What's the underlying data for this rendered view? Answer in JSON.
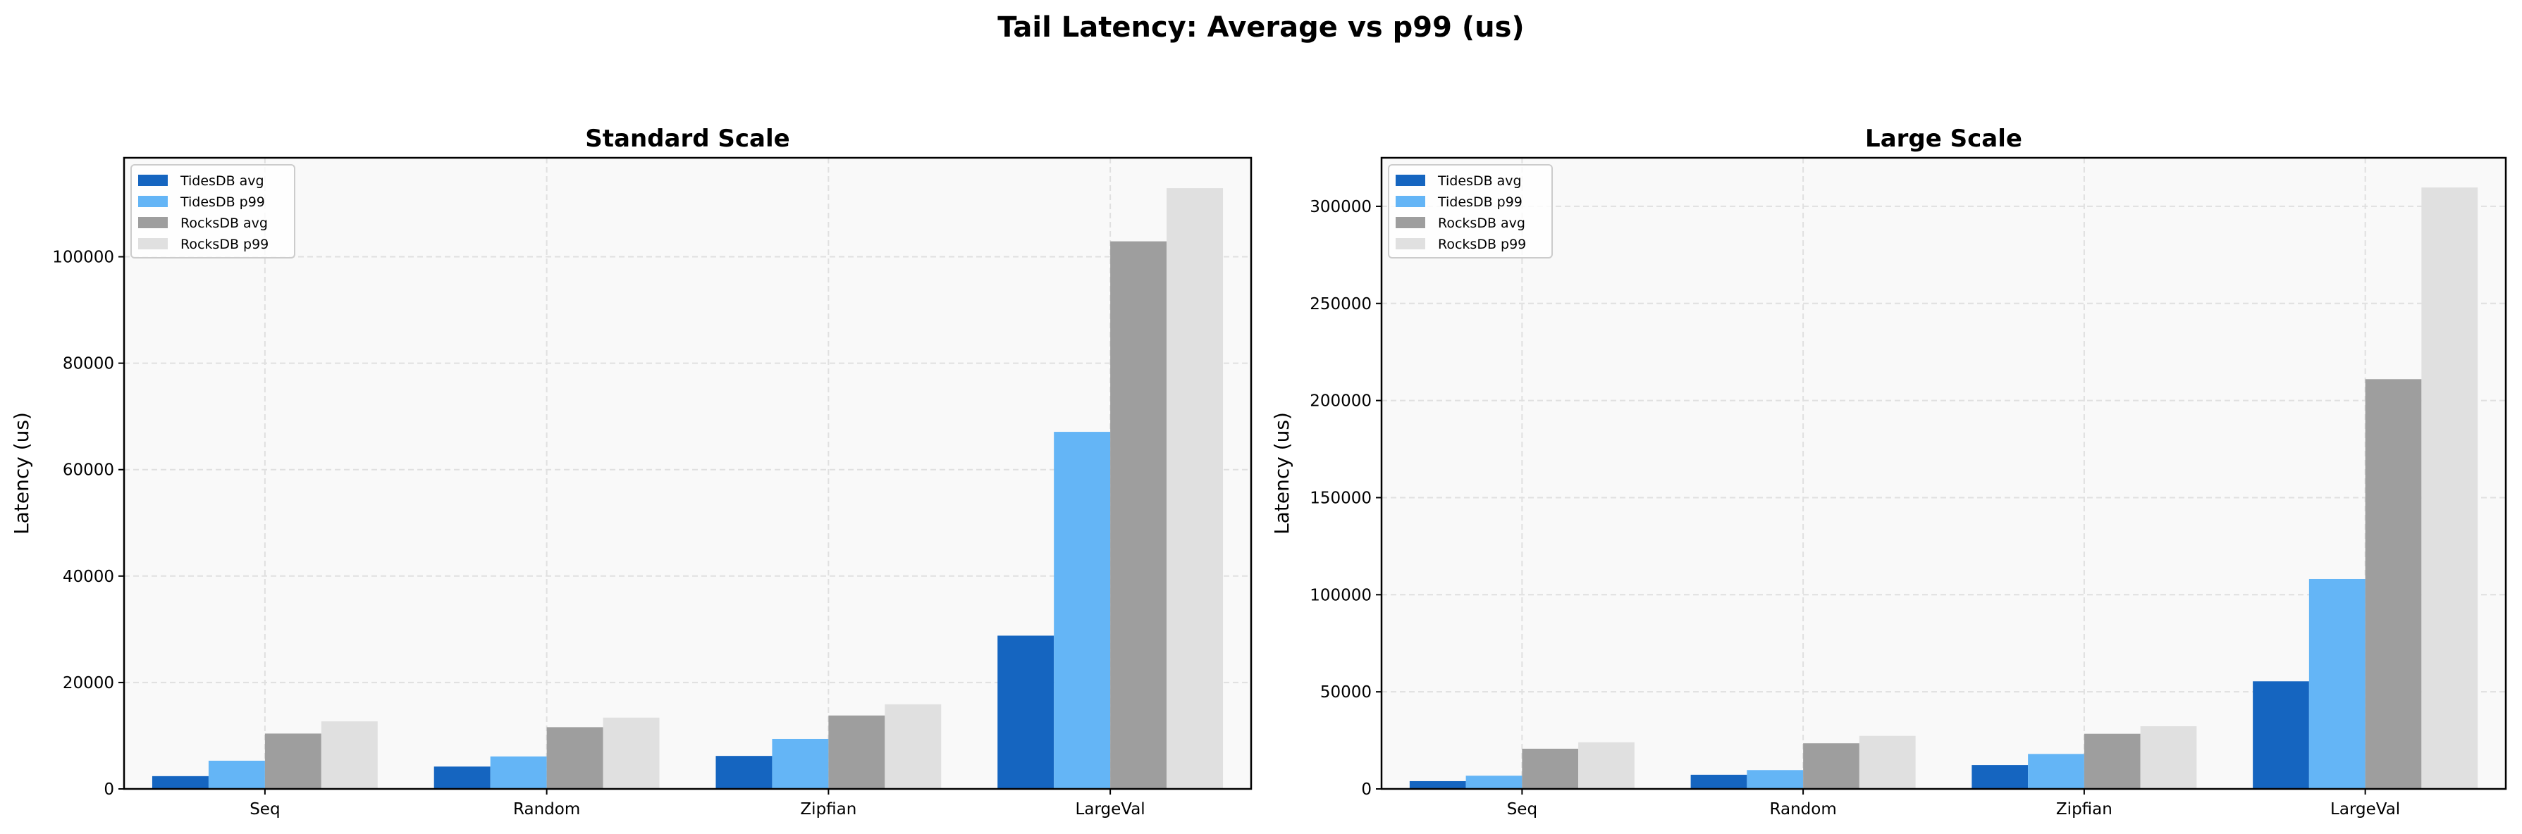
{
  "figure_title": "Tail Latency: Average vs p99 (us)",
  "colors": {
    "TidesDB avg": "#1565c0",
    "TidesDB p99": "#64b5f6",
    "RocksDB avg": "#9e9e9e",
    "RocksDB p99": "#e0e0e0",
    "plot_bg": "#f9f9f9",
    "grid": "#e0e0e0"
  },
  "chart_data": [
    {
      "type": "bar",
      "title": "Standard Scale",
      "xlabel": "",
      "ylabel": "Latency (us)",
      "categories": [
        "Seq",
        "Random",
        "Zipfian",
        "LargeVal"
      ],
      "ylim": [
        0,
        118600
      ],
      "yticks": [
        0,
        20000,
        40000,
        60000,
        80000,
        100000
      ],
      "grid": true,
      "legend_position": "top-left",
      "series": [
        {
          "name": "TidesDB avg",
          "values": [
            2400,
            4200,
            6200,
            28800
          ]
        },
        {
          "name": "TidesDB p99",
          "values": [
            5300,
            6100,
            9400,
            67100
          ]
        },
        {
          "name": "RocksDB avg",
          "values": [
            10400,
            11600,
            13800,
            102900
          ]
        },
        {
          "name": "RocksDB p99",
          "values": [
            12700,
            13400,
            15900,
            112900
          ]
        }
      ]
    },
    {
      "type": "bar",
      "title": "Large Scale",
      "xlabel": "",
      "ylabel": "Latency (us)",
      "categories": [
        "Seq",
        "Random",
        "Zipfian",
        "LargeVal"
      ],
      "ylim": [
        0,
        325000
      ],
      "yticks": [
        0,
        50000,
        100000,
        150000,
        200000,
        250000,
        300000
      ],
      "grid": true,
      "legend_position": "top-left",
      "series": [
        {
          "name": "TidesDB avg",
          "values": [
            4000,
            7300,
            12300,
            55400
          ]
        },
        {
          "name": "TidesDB p99",
          "values": [
            6800,
            9700,
            18000,
            108100
          ]
        },
        {
          "name": "RocksDB avg",
          "values": [
            20700,
            23500,
            28400,
            211000
          ]
        },
        {
          "name": "RocksDB p99",
          "values": [
            24000,
            27300,
            32300,
            309700
          ]
        }
      ]
    }
  ]
}
